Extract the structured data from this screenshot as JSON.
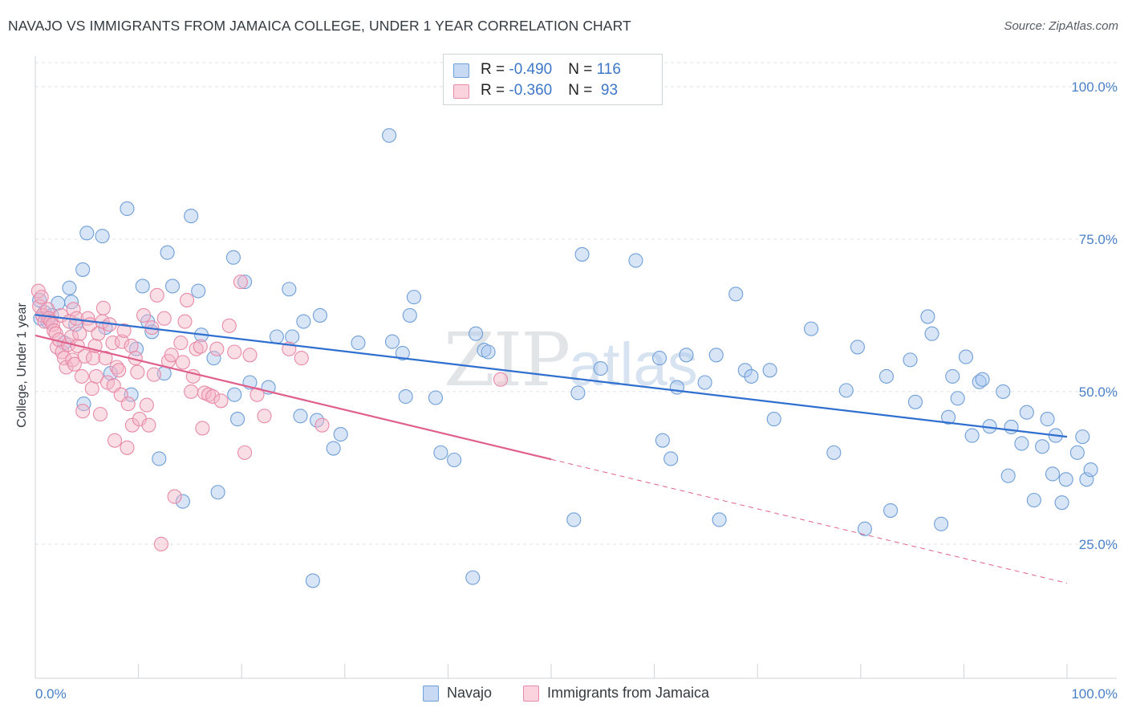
{
  "header": {
    "title": "NAVAJO VS IMMIGRANTS FROM JAMAICA COLLEGE, UNDER 1 YEAR CORRELATION CHART",
    "source": "Source: ZipAtlas.com"
  },
  "watermark": {
    "zip": "ZIP",
    "atlas": "atlas"
  },
  "stats": {
    "rows": [
      {
        "r_label": "R = ",
        "r_value": "-0.490",
        "n_label": "N = ",
        "n_value": "116",
        "color": "#a9c6ee"
      },
      {
        "r_label": "R = ",
        "r_value": "-0.360",
        "n_label": "N = ",
        "n_value": " 93",
        "color": "#f5b5c8"
      }
    ]
  },
  "chart_data": {
    "type": "scatter",
    "title": "NAVAJO VS IMMIGRANTS FROM JAMAICA COLLEGE, UNDER 1 YEAR CORRELATION CHART",
    "xlabel": "",
    "ylabel": "College, Under 1 year",
    "xlim": [
      0,
      100
    ],
    "ylim": [
      3,
      105
    ],
    "x_tick_labels": [
      "0.0%",
      "100.0%"
    ],
    "y_ticks": [
      25,
      50,
      75,
      100
    ],
    "y_tick_labels": [
      "25.0%",
      "50.0%",
      "75.0%",
      "100.0%"
    ],
    "grid": true,
    "legend_position": "bottom",
    "series": [
      {
        "name": "Navajo",
        "color": "#a9c6ee",
        "stroke": "#6f9fd8",
        "line_color": "#2f6fcf",
        "trend": {
          "x0": 0,
          "y0": 62.6,
          "x1": 100,
          "y1": 42.6
        },
        "points": [
          [
            0.4,
            65
          ],
          [
            0.5,
            62
          ],
          [
            0.9,
            63
          ],
          [
            1.2,
            61.5
          ],
          [
            1.6,
            62.5
          ],
          [
            2.2,
            64.5
          ],
          [
            2.8,
            58
          ],
          [
            3.3,
            67
          ],
          [
            3.5,
            64.7
          ],
          [
            3.9,
            61
          ],
          [
            4.6,
            70
          ],
          [
            4.7,
            48
          ],
          [
            5,
            76
          ],
          [
            6.5,
            75.5
          ],
          [
            6.8,
            60.5
          ],
          [
            7.3,
            53
          ],
          [
            8.9,
            80
          ],
          [
            9.3,
            49.5
          ],
          [
            9.8,
            57
          ],
          [
            10.4,
            67.3
          ],
          [
            10.9,
            61.5
          ],
          [
            11.3,
            59.8
          ],
          [
            12,
            39
          ],
          [
            12.5,
            53
          ],
          [
            12.8,
            72.8
          ],
          [
            13.3,
            67.3
          ],
          [
            14.3,
            32
          ],
          [
            15.1,
            78.8
          ],
          [
            15.8,
            66.5
          ],
          [
            16.1,
            59.3
          ],
          [
            17.3,
            55.5
          ],
          [
            17.7,
            33.5
          ],
          [
            19.2,
            72
          ],
          [
            19.3,
            49.5
          ],
          [
            19.6,
            45.5
          ],
          [
            20.3,
            68
          ],
          [
            20.8,
            51.5
          ],
          [
            22.6,
            50.7
          ],
          [
            23.4,
            59
          ],
          [
            24.6,
            66.8
          ],
          [
            24.9,
            59
          ],
          [
            25.7,
            46
          ],
          [
            26,
            61.5
          ],
          [
            26.9,
            19
          ],
          [
            27.3,
            45.3
          ],
          [
            27.6,
            62.5
          ],
          [
            28.9,
            40.7
          ],
          [
            29.6,
            43
          ],
          [
            31.3,
            58
          ],
          [
            34.3,
            92
          ],
          [
            34.6,
            58.2
          ],
          [
            35.6,
            56.3
          ],
          [
            35.9,
            49.2
          ],
          [
            36.3,
            62.5
          ],
          [
            36.7,
            65.5
          ],
          [
            38.8,
            49
          ],
          [
            39.3,
            40
          ],
          [
            40.6,
            38.8
          ],
          [
            42.4,
            19.5
          ],
          [
            42.7,
            59.5
          ],
          [
            43.5,
            56.8
          ],
          [
            43.9,
            56.5
          ],
          [
            52.2,
            29
          ],
          [
            52.6,
            49.8
          ],
          [
            53,
            72.5
          ],
          [
            54.8,
            53.8
          ],
          [
            58.2,
            71.5
          ],
          [
            60.5,
            55.5
          ],
          [
            60.8,
            42
          ],
          [
            61.6,
            39
          ],
          [
            62.2,
            50.7
          ],
          [
            63.1,
            56
          ],
          [
            64.9,
            51.5
          ],
          [
            66,
            56
          ],
          [
            66.3,
            29
          ],
          [
            67.9,
            66
          ],
          [
            68.8,
            53.5
          ],
          [
            69.4,
            52.5
          ],
          [
            71.2,
            53.5
          ],
          [
            71.6,
            45.5
          ],
          [
            75.2,
            60.3
          ],
          [
            77.4,
            40
          ],
          [
            78.6,
            50.2
          ],
          [
            79.7,
            57.3
          ],
          [
            80.4,
            27.5
          ],
          [
            82.5,
            52.5
          ],
          [
            82.9,
            30.5
          ],
          [
            84.8,
            55.2
          ],
          [
            85.3,
            48.3
          ],
          [
            86.5,
            62.3
          ],
          [
            86.9,
            59.5
          ],
          [
            87.8,
            28.3
          ],
          [
            88.5,
            45.8
          ],
          [
            88.9,
            52.5
          ],
          [
            89.4,
            48.9
          ],
          [
            90.2,
            55.7
          ],
          [
            90.8,
            42.8
          ],
          [
            91.5,
            51.6
          ],
          [
            91.8,
            52
          ],
          [
            92.5,
            44.3
          ],
          [
            93.8,
            50
          ],
          [
            94.3,
            36.2
          ],
          [
            94.6,
            44.2
          ],
          [
            95.6,
            41.5
          ],
          [
            96.1,
            46.6
          ],
          [
            96.8,
            32.2
          ],
          [
            97.6,
            41
          ],
          [
            98.1,
            45.5
          ],
          [
            98.6,
            36.5
          ],
          [
            98.9,
            42.8
          ],
          [
            99.5,
            31.8
          ],
          [
            99.9,
            35.6
          ],
          [
            101,
            40
          ],
          [
            101.5,
            42.6
          ],
          [
            101.9,
            35.6
          ],
          [
            102.3,
            37.2
          ]
        ]
      },
      {
        "name": "Immigrants from Jamaica",
        "color": "#f5b5c8",
        "stroke": "#e88aa8",
        "line_color": "#e0608d",
        "trend": {
          "x0": 0,
          "y0": 59.2,
          "x1": 50,
          "y1": 38.9,
          "x2": 100,
          "y2": 18.6
        },
        "points": [
          [
            0.3,
            66.5
          ],
          [
            0.4,
            64
          ],
          [
            0.6,
            65.5
          ],
          [
            0.7,
            62.5
          ],
          [
            0.9,
            61.5
          ],
          [
            1.2,
            63.5
          ],
          [
            1.3,
            62
          ],
          [
            1.5,
            61.5
          ],
          [
            1.7,
            61
          ],
          [
            1.8,
            60
          ],
          [
            2,
            59.5
          ],
          [
            2.1,
            57.3
          ],
          [
            2.3,
            58.5
          ],
          [
            2.5,
            62.5
          ],
          [
            2.6,
            56.5
          ],
          [
            2.8,
            55.5
          ],
          [
            3,
            54
          ],
          [
            3.2,
            57.7
          ],
          [
            3.3,
            61.5
          ],
          [
            3.5,
            59
          ],
          [
            3.6,
            55.2
          ],
          [
            3.7,
            63.5
          ],
          [
            3.8,
            54.5
          ],
          [
            4,
            62
          ],
          [
            4.1,
            57.5
          ],
          [
            4.3,
            59.5
          ],
          [
            4.5,
            52.5
          ],
          [
            4.6,
            46.8
          ],
          [
            4.8,
            55.8
          ],
          [
            5.1,
            62
          ],
          [
            5.3,
            61
          ],
          [
            5.5,
            50.5
          ],
          [
            5.6,
            55.5
          ],
          [
            5.8,
            57.5
          ],
          [
            5.9,
            52.5
          ],
          [
            6.1,
            59.5
          ],
          [
            6.3,
            46.3
          ],
          [
            6.5,
            61.5
          ],
          [
            6.6,
            63.7
          ],
          [
            6.8,
            55.5
          ],
          [
            7,
            51.5
          ],
          [
            7.2,
            61
          ],
          [
            7.5,
            58
          ],
          [
            7.6,
            51
          ],
          [
            7.7,
            42
          ],
          [
            7.9,
            54
          ],
          [
            8.1,
            53.5
          ],
          [
            8.3,
            49.5
          ],
          [
            8.4,
            58.2
          ],
          [
            8.6,
            60
          ],
          [
            8.9,
            40.8
          ],
          [
            9,
            48
          ],
          [
            9.3,
            57.5
          ],
          [
            9.4,
            44.5
          ],
          [
            9.7,
            55.5
          ],
          [
            9.9,
            53.2
          ],
          [
            10.1,
            45.5
          ],
          [
            10.5,
            62.5
          ],
          [
            10.8,
            47.8
          ],
          [
            11,
            44.5
          ],
          [
            11.3,
            60.5
          ],
          [
            11.5,
            52.8
          ],
          [
            11.8,
            65.8
          ],
          [
            12.2,
            25
          ],
          [
            12.5,
            62
          ],
          [
            12.9,
            55
          ],
          [
            13.2,
            56
          ],
          [
            13.5,
            32.8
          ],
          [
            14.1,
            58
          ],
          [
            14.3,
            54.8
          ],
          [
            14.5,
            61.5
          ],
          [
            14.7,
            65
          ],
          [
            15.1,
            50
          ],
          [
            15.3,
            52.5
          ],
          [
            15.6,
            57
          ],
          [
            16,
            57.4
          ],
          [
            16.2,
            44
          ],
          [
            16.4,
            49.8
          ],
          [
            16.8,
            49.5
          ],
          [
            17.2,
            49.2
          ],
          [
            17.6,
            57
          ],
          [
            18,
            48.5
          ],
          [
            18.8,
            60.8
          ],
          [
            19.3,
            56.5
          ],
          [
            19.9,
            68
          ],
          [
            20.3,
            40
          ],
          [
            20.8,
            56
          ],
          [
            21.5,
            49.5
          ],
          [
            22.2,
            46
          ],
          [
            24.6,
            57
          ],
          [
            25.8,
            55.5
          ],
          [
            27.8,
            44.5
          ],
          [
            45.1,
            52
          ]
        ]
      }
    ]
  },
  "legend": {
    "items": [
      {
        "label": "Navajo",
        "color": "#a9c6ee",
        "stroke": "#6f9fd8"
      },
      {
        "label": "Immigrants from Jamaica",
        "color": "#f5b5c8",
        "stroke": "#e88aa8"
      }
    ]
  }
}
